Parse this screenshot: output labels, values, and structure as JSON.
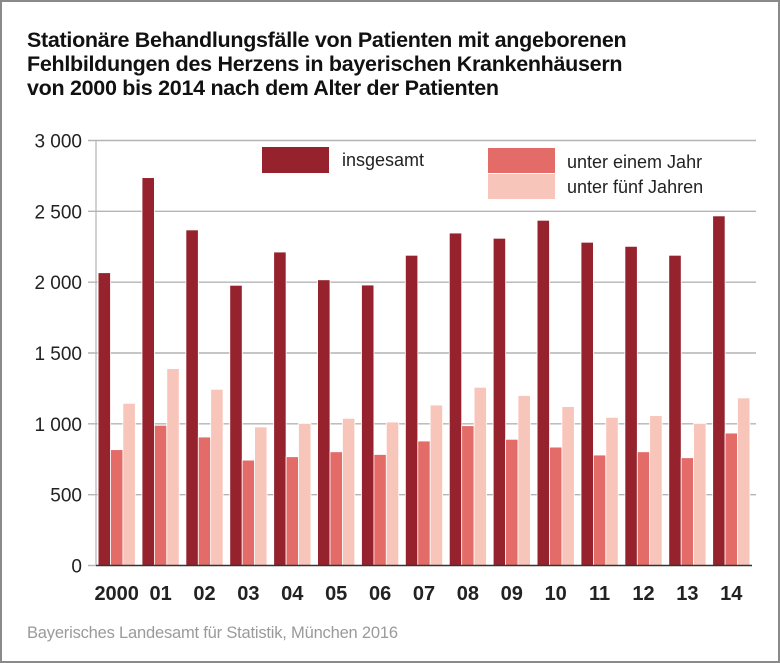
{
  "chart_data": {
    "type": "bar",
    "title": [
      "Stationäre Behandlungsfälle von Patienten mit angeborenen",
      "Fehlbildungen des Herzens in bayerischen Krankenhäusern",
      "von 2000 bis 2014 nach dem Alter der Patienten"
    ],
    "xlabel": "",
    "ylabel": "",
    "ylim": [
      0,
      3000
    ],
    "yticks": [
      0,
      500,
      1000,
      1500,
      2000,
      2500,
      3000
    ],
    "ytick_labels": [
      "0",
      "500",
      "1 000",
      "1 500",
      "2 000",
      "2 500",
      "3 000"
    ],
    "grid": true,
    "legend_position": "top-right",
    "categories": [
      "2000",
      "01",
      "02",
      "03",
      "04",
      "05",
      "06",
      "07",
      "08",
      "09",
      "10",
      "11",
      "12",
      "13",
      "14"
    ],
    "series": [
      {
        "name": "insgesamt",
        "color": "#95222D",
        "values": [
          2064,
          2735,
          2366,
          1975,
          2210,
          2014,
          1977,
          2187,
          2344,
          2307,
          2434,
          2279,
          2250,
          2187,
          2465
        ]
      },
      {
        "name": "unter einem Jahr",
        "color": "#E36C68",
        "values": [
          815,
          987,
          904,
          741,
          765,
          800,
          781,
          876,
          984,
          888,
          833,
          777,
          800,
          758,
          932
        ]
      },
      {
        "name": "unter fünf Jahren",
        "color": "#F8C5BA",
        "values": [
          1142,
          1387,
          1241,
          975,
          1000,
          1036,
          1010,
          1130,
          1255,
          1197,
          1119,
          1043,
          1055,
          1000,
          1180
        ]
      }
    ],
    "source": "Bayerisches Landesamt für Statistik, München 2016"
  }
}
